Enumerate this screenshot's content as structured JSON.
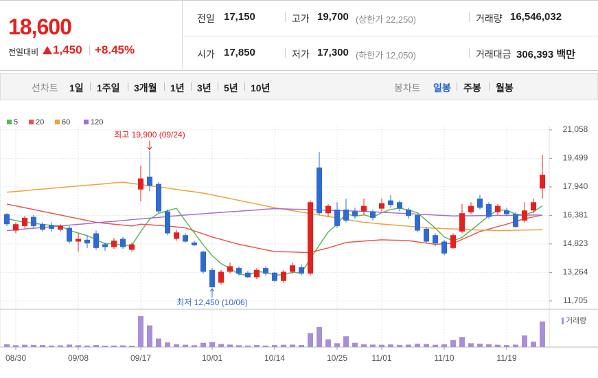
{
  "header": {
    "price": "18,600",
    "change_label": "전일대비",
    "change": "1,450",
    "change_pct": "+8.45%",
    "prev_label": "전일",
    "prev": "17,150",
    "high_label": "고가",
    "high": "19,700",
    "upper_limit": "(상한가 22,250)",
    "volume_label": "거래량",
    "volume": "16,546,032",
    "open_label": "시가",
    "open": "17,850",
    "low_label": "저가",
    "low": "17,300",
    "lower_limit": "(하한가 12,050)",
    "amount_label": "거래대금",
    "amount": "306,393 백만"
  },
  "toolbar": {
    "line_label": "선차트",
    "line_periods": [
      "1일",
      "1주일",
      "3개월",
      "1년",
      "3년",
      "5년",
      "10년"
    ],
    "candle_label": "봉차트",
    "candle_periods": [
      "일봉",
      "주봉",
      "월봉"
    ]
  },
  "chart_data": {
    "type": "candlestick",
    "categories": [
      null,
      "08/30",
      null,
      null,
      null,
      null,
      null,
      null,
      "09/08",
      null,
      null,
      null,
      null,
      null,
      null,
      "09/17",
      null,
      null,
      null,
      null,
      null,
      null,
      null,
      "10/01",
      null,
      null,
      null,
      null,
      null,
      null,
      "10/14",
      null,
      null,
      null,
      null,
      null,
      null,
      "10/25",
      null,
      null,
      null,
      null,
      "11/01",
      null,
      null,
      null,
      null,
      null,
      null,
      "11/10",
      null,
      null,
      null,
      null,
      null,
      null,
      "11/19",
      null,
      null,
      null,
      null
    ],
    "open": [
      16450,
      15550,
      15800,
      16300,
      15900,
      15850,
      15600,
      15700,
      14950,
      15050,
      15400,
      14800,
      14650,
      15100,
      14500,
      17800,
      18500,
      18100,
      16600,
      15100,
      15300,
      14900,
      14400,
      13400,
      12700,
      13300,
      13500,
      13250,
      13000,
      13500,
      13250,
      12800,
      13300,
      13550,
      13200,
      19000,
      16500,
      16700,
      16700,
      16600,
      16600,
      16600,
      16750,
      17200,
      17100,
      16700,
      16400,
      15650,
      15300,
      14950,
      14600,
      15500,
      16550,
      17300,
      17000,
      16550,
      16650,
      16450,
      16100,
      16650,
      17850
    ],
    "high": [
      16500,
      16000,
      16350,
      16400,
      16000,
      16000,
      15900,
      15800,
      15400,
      15300,
      15550,
      14900,
      15150,
      15200,
      14900,
      19100,
      19900,
      18200,
      16700,
      15600,
      15400,
      15000,
      14450,
      13500,
      13400,
      13800,
      13600,
      13350,
      13500,
      13600,
      13300,
      13400,
      13800,
      13700,
      17200,
      19850,
      17000,
      17100,
      17300,
      16800,
      17300,
      16700,
      17300,
      17500,
      17200,
      16800,
      16450,
      15750,
      15400,
      15050,
      15400,
      17000,
      17100,
      17500,
      17100,
      17000,
      16800,
      16550,
      17100,
      17300,
      19700
    ],
    "low": [
      15800,
      15400,
      15700,
      15700,
      15500,
      15500,
      15500,
      14850,
      14400,
      14600,
      14500,
      14450,
      14550,
      14550,
      14400,
      17150,
      17700,
      16500,
      15300,
      15000,
      14900,
      14700,
      13200,
      12450,
      12600,
      13200,
      13100,
      12950,
      12900,
      13100,
      12750,
      12700,
      13200,
      13100,
      13100,
      16400,
      16300,
      15700,
      16000,
      16200,
      16400,
      16100,
      16600,
      16800,
      16600,
      16200,
      15450,
      14900,
      14700,
      14200,
      14550,
      15400,
      16450,
      16700,
      16200,
      16400,
      16350,
      15700,
      16000,
      16500,
      17300
    ],
    "close": [
      15900,
      15900,
      16250,
      15800,
      15600,
      15650,
      15800,
      14950,
      15100,
      14850,
      14600,
      14650,
      15000,
      14650,
      14800,
      18400,
      18000,
      16600,
      15400,
      15450,
      14950,
      14750,
      13300,
      12450,
      13300,
      13600,
      13200,
      13000,
      13400,
      13200,
      12800,
      13300,
      13650,
      13200,
      17100,
      16500,
      16900,
      15800,
      16100,
      16350,
      16900,
      16250,
      17050,
      16950,
      16750,
      16350,
      15550,
      14950,
      14850,
      14300,
      15300,
      16500,
      16900,
      16800,
      16300,
      16900,
      16450,
      15750,
      16650,
      17100,
      18600
    ],
    "up_color": "#e3211e",
    "down_color": "#2f6ad0",
    "series": [
      {
        "name": "5",
        "color": "#5cb85c",
        "values": [
          16200,
          16100,
          16000,
          15950,
          15890,
          15840,
          15820,
          15560,
          15420,
          15270,
          15060,
          14830,
          14840,
          14750,
          14740,
          15500,
          16170,
          16490,
          16640,
          16770,
          16080,
          15430,
          14770,
          14180,
          13750,
          13480,
          13170,
          13110,
          13300,
          13280,
          13120,
          13140,
          13270,
          13230,
          14010,
          14750,
          15470,
          15900,
          16480,
          16330,
          16410,
          16280,
          16530,
          16700,
          16780,
          16670,
          16530,
          16110,
          15690,
          15200,
          14990,
          15180,
          15570,
          15960,
          16360,
          16680,
          16670,
          16440,
          16410,
          16570,
          16910
        ]
      },
      {
        "name": "20",
        "color": "#e8574f",
        "values": [
          17000,
          16900,
          16800,
          16700,
          16600,
          16500,
          16400,
          16300,
          16200,
          16100,
          16000,
          15950,
          15900,
          15850,
          15800,
          15900,
          15870,
          15830,
          15800,
          15750,
          15700,
          15530,
          15370,
          15200,
          15070,
          14930,
          14800,
          14700,
          14600,
          14500,
          14400,
          14390,
          14380,
          14360,
          14350,
          14480,
          14600,
          14750,
          14900,
          14940,
          14980,
          15010,
          15050,
          15030,
          15020,
          15000,
          14930,
          14870,
          14800,
          14830,
          14850,
          15070,
          15280,
          15500,
          15630,
          15770,
          15900,
          16050,
          16200,
          16300,
          16400
        ]
      },
      {
        "name": "60",
        "color": "#f0a03c",
        "values": [
          17650,
          17690,
          17730,
          17780,
          17820,
          17860,
          17900,
          17950,
          17990,
          18030,
          18070,
          18110,
          18160,
          18200,
          18130,
          18070,
          18000,
          17930,
          17870,
          17800,
          17730,
          17670,
          17600,
          17500,
          17400,
          17300,
          17200,
          17100,
          17000,
          16900,
          16800,
          16720,
          16640,
          16560,
          16480,
          16400,
          16320,
          16240,
          16160,
          16080,
          16000,
          15960,
          15910,
          15870,
          15830,
          15790,
          15740,
          15700,
          15680,
          15660,
          15640,
          15620,
          15600,
          15580,
          15570,
          15550,
          15560,
          15570,
          15580,
          15590,
          15600
        ]
      },
      {
        "name": "120",
        "color": "#a56fd0",
        "values": [
          15550,
          15590,
          15640,
          15680,
          15720,
          15760,
          15810,
          15850,
          15890,
          15930,
          15980,
          16020,
          16060,
          16100,
          16150,
          16190,
          16230,
          16270,
          16320,
          16360,
          16400,
          16440,
          16470,
          16510,
          16540,
          16580,
          16610,
          16650,
          16680,
          16720,
          16750,
          16740,
          16720,
          16710,
          16690,
          16680,
          16660,
          16650,
          16630,
          16620,
          16600,
          16580,
          16550,
          16530,
          16500,
          16480,
          16450,
          16430,
          16400,
          16380,
          16350,
          16360,
          16360,
          16370,
          16370,
          16380,
          16380,
          16390,
          16390,
          16400,
          16400
        ]
      }
    ],
    "volume_name": "거래량",
    "volume_color": "#a98fd8",
    "volume": [
      1800000,
      1200000,
      1500000,
      1400000,
      1300000,
      1000000,
      1100000,
      1600000,
      1200000,
      1000000,
      1300000,
      900000,
      1000000,
      1100000,
      900000,
      20000000,
      14000000,
      5500000,
      3000000,
      1800000,
      1500000,
      1200000,
      2800000,
      3200000,
      2000000,
      1600000,
      1200000,
      1000000,
      1300000,
      1000000,
      1400000,
      1500000,
      1600000,
      1400000,
      9000000,
      13000000,
      5000000,
      2500000,
      7000000,
      2800000,
      1800000,
      1600000,
      1500000,
      1700000,
      1400000,
      1600000,
      2200000,
      2000000,
      1500000,
      1800000,
      4500000,
      6500000,
      2500000,
      2200000,
      1800000,
      1500000,
      1300000,
      1600000,
      7500000,
      3500000,
      16546032
    ],
    "high_annotation": "최고 19,900 (09/24)",
    "low_annotation": "최저 12,450 (10/06)",
    "ylim": [
      11250,
      21280
    ],
    "yticks": [
      {
        "value": 21058,
        "label": "21,058"
      },
      {
        "value": 19499,
        "label": "19,499"
      },
      {
        "value": 17940,
        "label": "17,940"
      },
      {
        "value": 16381,
        "label": "16,381"
      },
      {
        "value": 14823,
        "label": "14,823"
      },
      {
        "value": 13264,
        "label": "13,264"
      },
      {
        "value": 11705,
        "label": "11,705"
      }
    ],
    "grid": true
  }
}
